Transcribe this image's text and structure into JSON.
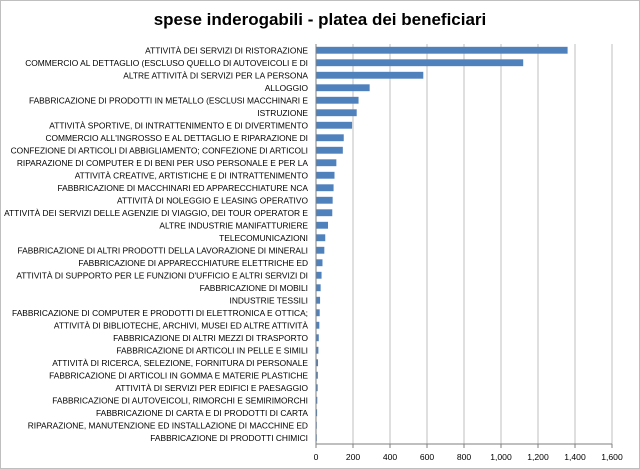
{
  "chart_data": {
    "type": "bar",
    "orientation": "horizontal",
    "title": "spese inderogabili - platea dei beneficiari",
    "xlabel": "",
    "ylabel": "",
    "xlim": [
      0,
      1600
    ],
    "x_ticks": [
      0,
      200,
      400,
      600,
      800,
      1000,
      1200,
      1400,
      1600
    ],
    "x_tick_labels": [
      "0",
      "200",
      "400",
      "600",
      "800",
      "1,000",
      "1,200",
      "1,400",
      "1,600"
    ],
    "grid": true,
    "bar_color": "#4f81bd",
    "categories": [
      "ATTIVITÀ DEI SERVIZI DI RISTORAZIONE",
      "COMMERCIO AL DETTAGLIO (ESCLUSO QUELLO DI AUTOVEICOLI E DI",
      "ALTRE ATTIVITÀ DI SERVIZI PER LA PERSONA",
      "ALLOGGIO",
      "FABBRICAZIONE DI PRODOTTI IN METALLO (ESCLUSI MACCHINARI E",
      "ISTRUZIONE",
      "ATTIVITÀ SPORTIVE, DI INTRATTENIMENTO E DI DIVERTIMENTO",
      "COMMERCIO ALL'INGROSSO E AL DETTAGLIO E RIPARAZIONE DI",
      "CONFEZIONE DI ARTICOLI DI ABBIGLIAMENTO; CONFEZIONE DI ARTICOLI",
      "RIPARAZIONE DI COMPUTER E DI BENI PER USO PERSONALE E PER LA",
      "ATTIVITÀ CREATIVE, ARTISTICHE E DI INTRATTENIMENTO",
      "FABBRICAZIONE DI MACCHINARI ED APPARECCHIATURE NCA",
      "ATTIVITÀ DI NOLEGGIO E LEASING OPERATIVO",
      "ATTIVITÀ DEI SERVIZI DELLE AGENZIE DI VIAGGIO, DEI TOUR OPERATOR E",
      "ALTRE INDUSTRIE MANIFATTURIERE",
      "TELECOMUNICAZIONI",
      "FABBRICAZIONE DI ALTRI PRODOTTI DELLA LAVORAZIONE DI MINERALI",
      "FABBRICAZIONE DI APPARECCHIATURE ELETTRICHE ED",
      "ATTIVITÀ DI SUPPORTO PER LE FUNZIONI D'UFFICIO E ALTRI SERVIZI DI",
      "FABBRICAZIONE DI MOBILI",
      "INDUSTRIE TESSILI",
      "FABBRICAZIONE DI COMPUTER E PRODOTTI DI ELETTRONICA E OTTICA;",
      "ATTIVITÀ DI BIBLIOTECHE, ARCHIVI, MUSEI ED ALTRE ATTIVITÀ",
      "FABBRICAZIONE DI ALTRI MEZZI DI TRASPORTO",
      "FABBRICAZIONE DI ARTICOLI IN PELLE E SIMILI",
      "ATTIVITÀ DI RICERCA, SELEZIONE, FORNITURA DI PERSONALE",
      "FABBRICAZIONE DI ARTICOLI IN GOMMA E MATERIE PLASTICHE",
      "ATTIVITÀ DI SERVIZI PER EDIFICI E PAESAGGIO",
      "FABBRICAZIONE DI AUTOVEICOLI, RIMORCHI E SEMIRIMORCHI",
      "FABBRICAZIONE DI CARTA E DI PRODOTTI DI CARTA",
      "RIPARAZIONE, MANUTENZIONE ED INSTALLAZIONE DI MACCHINE ED",
      "FABBRICAZIONE DI PRODOTTI CHIMICI"
    ],
    "values": [
      1360,
      1120,
      580,
      290,
      230,
      220,
      195,
      150,
      145,
      110,
      100,
      95,
      90,
      88,
      65,
      50,
      45,
      35,
      30,
      25,
      22,
      20,
      18,
      15,
      13,
      11,
      10,
      9,
      7,
      6,
      4,
      3
    ]
  }
}
